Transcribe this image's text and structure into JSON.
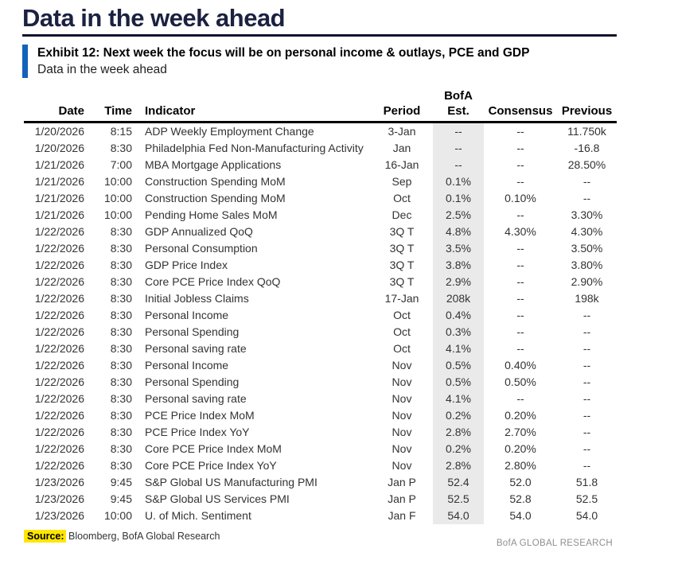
{
  "page_title": "Data in the week ahead",
  "exhibit": {
    "title": "Exhibit 12: Next week the focus will be on personal income & outlays, PCE and GDP",
    "subtitle": "Data in the week ahead"
  },
  "table": {
    "headers": {
      "date": "Date",
      "time": "Time",
      "indicator": "Indicator",
      "period": "Period",
      "bofa_line1": "BofA",
      "bofa_line2": "Est.",
      "consensus": "Consensus",
      "previous": "Previous"
    },
    "rows": [
      {
        "date": "1/20/2026",
        "time": "8:15",
        "indicator": "ADP Weekly Employment Change",
        "period": "3-Jan",
        "est": "--",
        "consensus": "--",
        "previous": "11.750k"
      },
      {
        "date": "1/20/2026",
        "time": "8:30",
        "indicator": "Philadelphia Fed Non-Manufacturing Activity",
        "period": "Jan",
        "est": "--",
        "consensus": "--",
        "previous": "-16.8"
      },
      {
        "date": "1/21/2026",
        "time": "7:00",
        "indicator": "MBA Mortgage Applications",
        "period": "16-Jan",
        "est": "--",
        "consensus": "--",
        "previous": "28.50%"
      },
      {
        "date": "1/21/2026",
        "time": "10:00",
        "indicator": "Construction Spending MoM",
        "period": "Sep",
        "est": "0.1%",
        "consensus": "--",
        "previous": "--"
      },
      {
        "date": "1/21/2026",
        "time": "10:00",
        "indicator": "Construction Spending MoM",
        "period": "Oct",
        "est": "0.1%",
        "consensus": "0.10%",
        "previous": "--"
      },
      {
        "date": "1/21/2026",
        "time": "10:00",
        "indicator": "Pending Home Sales MoM",
        "period": "Dec",
        "est": "2.5%",
        "consensus": "--",
        "previous": "3.30%"
      },
      {
        "date": "1/22/2026",
        "time": "8:30",
        "indicator": "GDP Annualized QoQ",
        "period": "3Q T",
        "est": "4.8%",
        "consensus": "4.30%",
        "previous": "4.30%"
      },
      {
        "date": "1/22/2026",
        "time": "8:30",
        "indicator": "Personal Consumption",
        "period": "3Q T",
        "est": "3.5%",
        "consensus": "--",
        "previous": "3.50%"
      },
      {
        "date": "1/22/2026",
        "time": "8:30",
        "indicator": "GDP Price Index",
        "period": "3Q T",
        "est": "3.8%",
        "consensus": "--",
        "previous": "3.80%"
      },
      {
        "date": "1/22/2026",
        "time": "8:30",
        "indicator": "Core PCE Price Index QoQ",
        "period": "3Q T",
        "est": "2.9%",
        "consensus": "--",
        "previous": "2.90%"
      },
      {
        "date": "1/22/2026",
        "time": "8:30",
        "indicator": "Initial Jobless Claims",
        "period": "17-Jan",
        "est": "208k",
        "consensus": "--",
        "previous": "198k"
      },
      {
        "date": "1/22/2026",
        "time": "8:30",
        "indicator": "Personal Income",
        "period": "Oct",
        "est": "0.4%",
        "consensus": "--",
        "previous": "--"
      },
      {
        "date": "1/22/2026",
        "time": "8:30",
        "indicator": "Personal Spending",
        "period": "Oct",
        "est": "0.3%",
        "consensus": "--",
        "previous": "--"
      },
      {
        "date": "1/22/2026",
        "time": "8:30",
        "indicator": "Personal saving rate",
        "period": "Oct",
        "est": "4.1%",
        "consensus": "--",
        "previous": "--"
      },
      {
        "date": "1/22/2026",
        "time": "8:30",
        "indicator": "Personal Income",
        "period": "Nov",
        "est": "0.5%",
        "consensus": "0.40%",
        "previous": "--"
      },
      {
        "date": "1/22/2026",
        "time": "8:30",
        "indicator": "Personal Spending",
        "period": "Nov",
        "est": "0.5%",
        "consensus": "0.50%",
        "previous": "--"
      },
      {
        "date": "1/22/2026",
        "time": "8:30",
        "indicator": "Personal saving rate",
        "period": "Nov",
        "est": "4.1%",
        "consensus": "--",
        "previous": "--"
      },
      {
        "date": "1/22/2026",
        "time": "8:30",
        "indicator": "PCE Price Index MoM",
        "period": "Nov",
        "est": "0.2%",
        "consensus": "0.20%",
        "previous": "--"
      },
      {
        "date": "1/22/2026",
        "time": "8:30",
        "indicator": "PCE Price Index YoY",
        "period": "Nov",
        "est": "2.8%",
        "consensus": "2.70%",
        "previous": "--"
      },
      {
        "date": "1/22/2026",
        "time": "8:30",
        "indicator": "Core PCE Price Index MoM",
        "period": "Nov",
        "est": "0.2%",
        "consensus": "0.20%",
        "previous": "--"
      },
      {
        "date": "1/22/2026",
        "time": "8:30",
        "indicator": "Core PCE Price Index YoY",
        "period": "Nov",
        "est": "2.8%",
        "consensus": "2.80%",
        "previous": "--"
      },
      {
        "date": "1/23/2026",
        "time": "9:45",
        "indicator": "S&P Global US Manufacturing PMI",
        "period": "Jan P",
        "est": "52.4",
        "consensus": "52.0",
        "previous": "51.8"
      },
      {
        "date": "1/23/2026",
        "time": "9:45",
        "indicator": "S&P Global US Services PMI",
        "period": "Jan P",
        "est": "52.5",
        "consensus": "52.8",
        "previous": "52.5"
      },
      {
        "date": "1/23/2026",
        "time": "10:00",
        "indicator": "U. of Mich. Sentiment",
        "period": "Jan F",
        "est": "54.0",
        "consensus": "54.0",
        "previous": "54.0"
      }
    ]
  },
  "footer": {
    "source_label": "Source:",
    "source_text": " Bloomberg, BofA Global Research",
    "brand": "BofA GLOBAL RESEARCH"
  },
  "colors": {
    "title_navy": "#1b2140",
    "accent_blue": "#1363b8",
    "est_column_bg": "#eaeaea",
    "highlight_yellow": "#ffe600",
    "brand_gray": "#8f8f8f"
  }
}
